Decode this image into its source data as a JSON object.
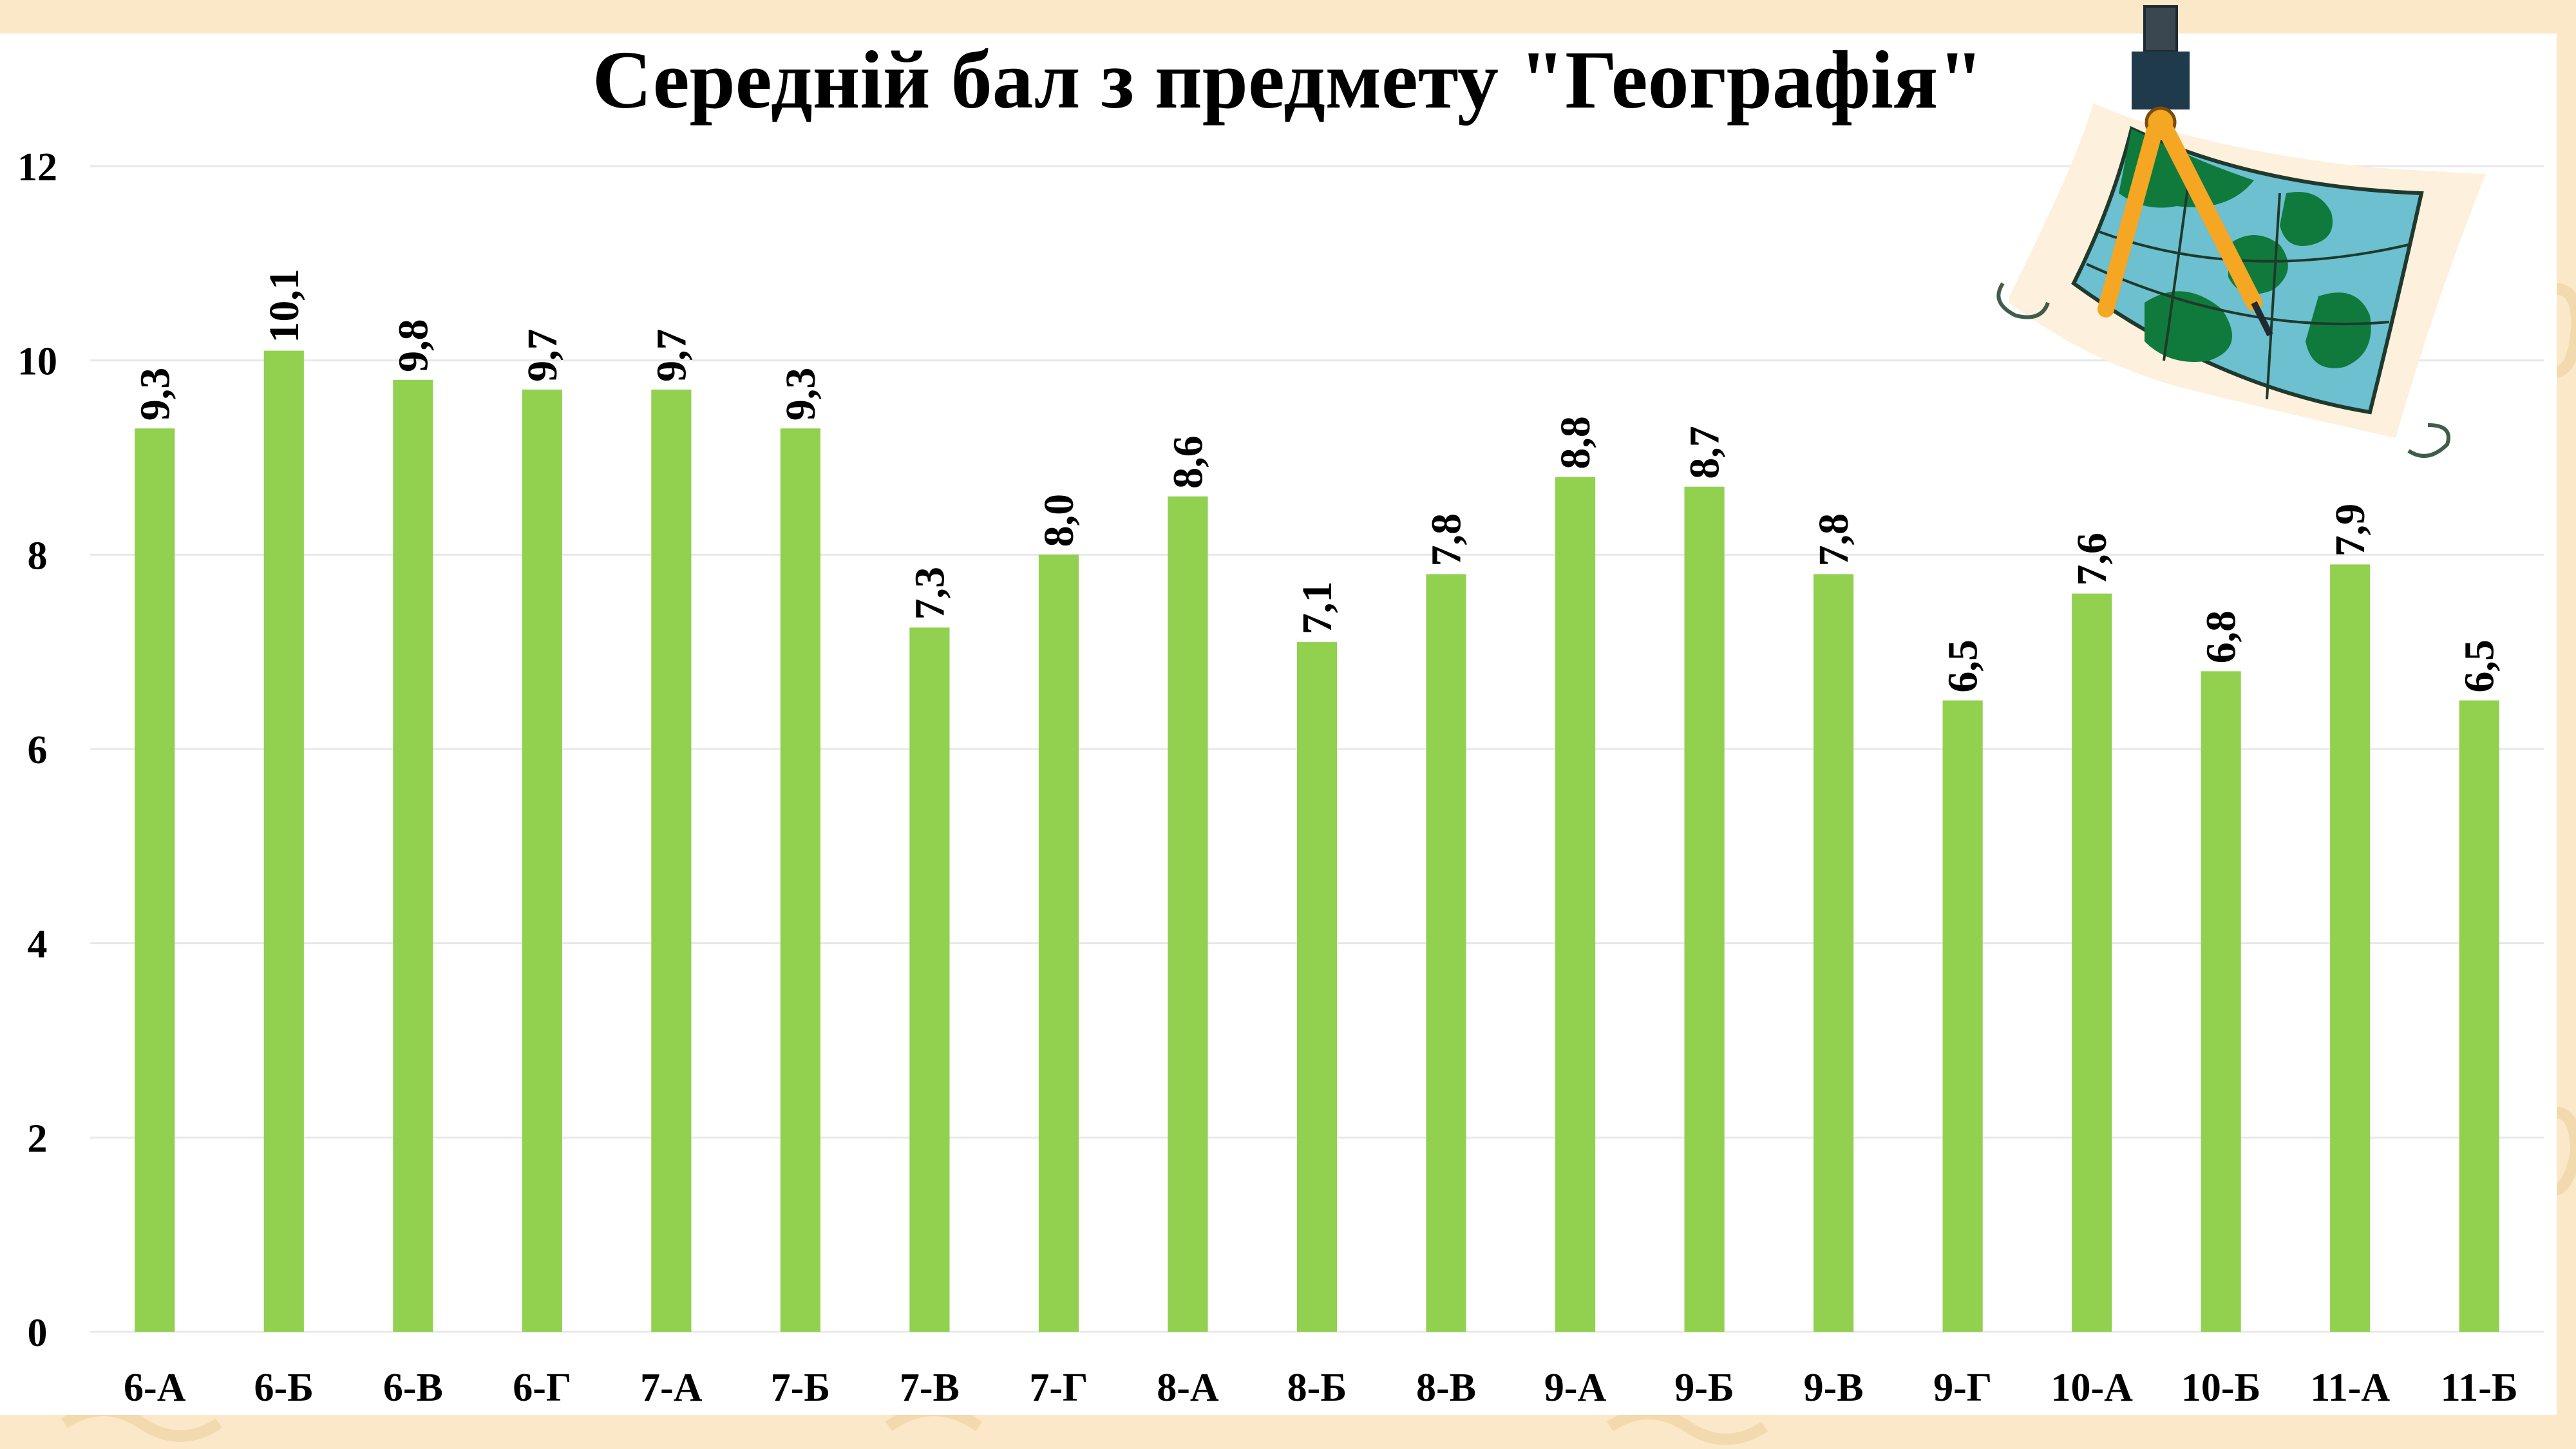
{
  "chart_data": {
    "type": "bar",
    "title": "Середній бал з предмету \"Географія\"",
    "categories": [
      "6-А",
      "6-Б",
      "6-В",
      "6-Г",
      "7-А",
      "7-Б",
      "7-В",
      "7-Г",
      "8-А",
      "8-Б",
      "8-В",
      "9-А",
      "9-Б",
      "9-В",
      "9-Г",
      "10-А",
      "10-Б",
      "11-А",
      "11-Б"
    ],
    "values": [
      9.3,
      10.1,
      9.8,
      9.7,
      9.7,
      9.3,
      7.25,
      8.0,
      8.6,
      7.1,
      7.8,
      8.8,
      8.7,
      7.8,
      6.5,
      7.6,
      6.8,
      7.9,
      6.5
    ],
    "data_labels": [
      "9,3",
      "10,1",
      "9,8",
      "9,7",
      "9,7",
      "9,3",
      "7,3",
      "8,0",
      "8,6",
      "7,1",
      "7,8",
      "8,8",
      "8,7",
      "7,8",
      "6,5",
      "7,6",
      "6,8",
      "7,9",
      "6,5"
    ],
    "yticks": [
      "0",
      "2",
      "4",
      "6",
      "8",
      "10",
      "12"
    ],
    "ylim": [
      0,
      12
    ],
    "xlabel": "",
    "ylabel": "",
    "grid": true,
    "legend": "none",
    "bar_color": "#92d050"
  },
  "decoration": {
    "background_color": "#fbe8c8",
    "illustration": "map-compass-icon"
  }
}
